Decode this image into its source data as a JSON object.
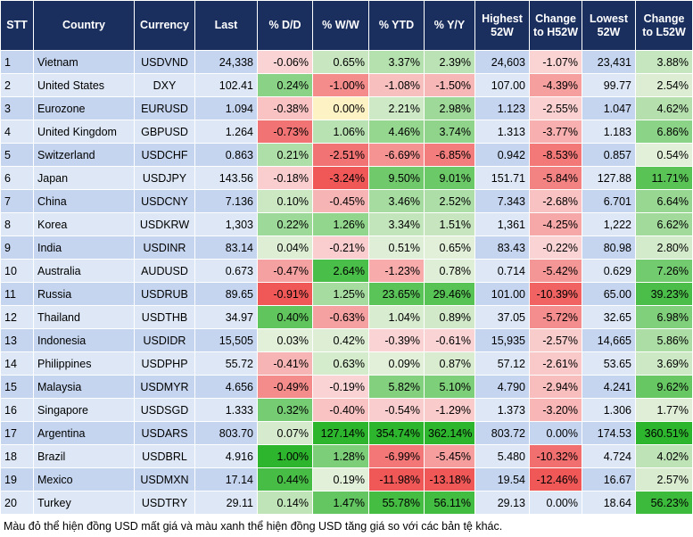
{
  "table": {
    "header": [
      "STT",
      "Country",
      "Currency",
      "Last",
      "% D/D",
      "% W/W",
      "% YTD",
      "% Y/Y",
      "Highest 52W",
      "Change to H52W",
      "Lowest 52W",
      "Change to L52W"
    ],
    "rows": [
      [
        "1",
        "Vietnam",
        "USDVND",
        "24,338",
        "-0.06%",
        "0.65%",
        "3.37%",
        "2.39%",
        "24,603",
        "-1.07%",
        "23,431",
        "3.88%"
      ],
      [
        "2",
        "United States",
        "DXY",
        "102.41",
        "0.24%",
        "-1.00%",
        "-1.08%",
        "-1.50%",
        "107.00",
        "-4.39%",
        "99.77",
        "2.54%"
      ],
      [
        "3",
        "Eurozone",
        "EURUSD",
        "1.094",
        "-0.38%",
        "0.00%",
        "2.21%",
        "2.98%",
        "1.123",
        "-2.55%",
        "1.047",
        "4.62%"
      ],
      [
        "4",
        "United Kingdom",
        "GBPUSD",
        "1.264",
        "-0.73%",
        "1.06%",
        "4.46%",
        "3.74%",
        "1.313",
        "-3.77%",
        "1.183",
        "6.86%"
      ],
      [
        "5",
        "Switzerland",
        "USDCHF",
        "0.863",
        "0.21%",
        "-2.51%",
        "-6.69%",
        "-6.85%",
        "0.942",
        "-8.53%",
        "0.857",
        "0.54%"
      ],
      [
        "6",
        "Japan",
        "USDJPY",
        "143.56",
        "-0.18%",
        "-3.24%",
        "9.50%",
        "9.01%",
        "151.71",
        "-5.84%",
        "127.88",
        "11.71%"
      ],
      [
        "7",
        "China",
        "USDCNY",
        "7.136",
        "0.10%",
        "-0.45%",
        "3.46%",
        "2.52%",
        "7.343",
        "-2.68%",
        "6.701",
        "6.64%"
      ],
      [
        "8",
        "Korea",
        "USDKRW",
        "1,303",
        "0.22%",
        "1.26%",
        "3.34%",
        "1.51%",
        "1,361",
        "-4.25%",
        "1,222",
        "6.62%"
      ],
      [
        "9",
        "India",
        "USDINR",
        "83.14",
        "0.04%",
        "-0.21%",
        "0.51%",
        "0.65%",
        "83.43",
        "-0.22%",
        "80.98",
        "2.80%"
      ],
      [
        "10",
        "Australia",
        "AUDUSD",
        "0.673",
        "-0.47%",
        "2.64%",
        "-1.23%",
        "0.78%",
        "0.714",
        "-5.42%",
        "0.629",
        "7.26%"
      ],
      [
        "11",
        "Russia",
        "USDRUB",
        "89.65",
        "-0.91%",
        "1.25%",
        "23.65%",
        "29.46%",
        "101.00",
        "-10.39%",
        "65.00",
        "39.23%"
      ],
      [
        "12",
        "Thailand",
        "USDTHB",
        "34.97",
        "0.40%",
        "-0.63%",
        "1.04%",
        "0.89%",
        "37.05",
        "-5.72%",
        "32.65",
        "6.98%"
      ],
      [
        "13",
        "Indonesia",
        "USDIDR",
        "15,505",
        "0.03%",
        "0.42%",
        "-0.39%",
        "-0.61%",
        "15,935",
        "-2.57%",
        "14,665",
        "5.86%"
      ],
      [
        "14",
        "Philippines",
        "USDPHP",
        "55.72",
        "-0.41%",
        "0.63%",
        "0.09%",
        "0.87%",
        "57.12",
        "-2.61%",
        "53.65",
        "3.69%"
      ],
      [
        "15",
        "Malaysia",
        "USDMYR",
        "4.656",
        "-0.49%",
        "-0.19%",
        "5.82%",
        "5.10%",
        "4.790",
        "-2.94%",
        "4.241",
        "9.62%"
      ],
      [
        "16",
        "Singapore",
        "USDSGD",
        "1.333",
        "0.32%",
        "-0.40%",
        "-0.54%",
        "-1.29%",
        "1.373",
        "-3.20%",
        "1.306",
        "1.77%"
      ],
      [
        "17",
        "Argentina",
        "USDARS",
        "803.70",
        "0.07%",
        "127.14%",
        "354.74%",
        "362.14%",
        "803.72",
        "0.00%",
        "174.53",
        "360.51%"
      ],
      [
        "18",
        "Brazil",
        "USDBRL",
        "4.916",
        "1.00%",
        "1.28%",
        "-6.99%",
        "-5.45%",
        "5.480",
        "-10.32%",
        "4.724",
        "4.02%"
      ],
      [
        "19",
        "Mexico",
        "USDMXN",
        "17.14",
        "0.44%",
        "0.19%",
        "-11.98%",
        "-13.18%",
        "19.54",
        "-12.46%",
        "16.67",
        "2.57%"
      ],
      [
        "20",
        "Turkey",
        "USDTRY",
        "29.11",
        "0.14%",
        "1.47%",
        "55.78%",
        "56.11%",
        "29.13",
        "0.00%",
        "18.64",
        "56.23%"
      ]
    ]
  },
  "footer": "Màu đỏ thể hiện đồng USD mất giá và màu xanh thể hiện đồng USD tăng giá so với các bản tệ khác."
}
